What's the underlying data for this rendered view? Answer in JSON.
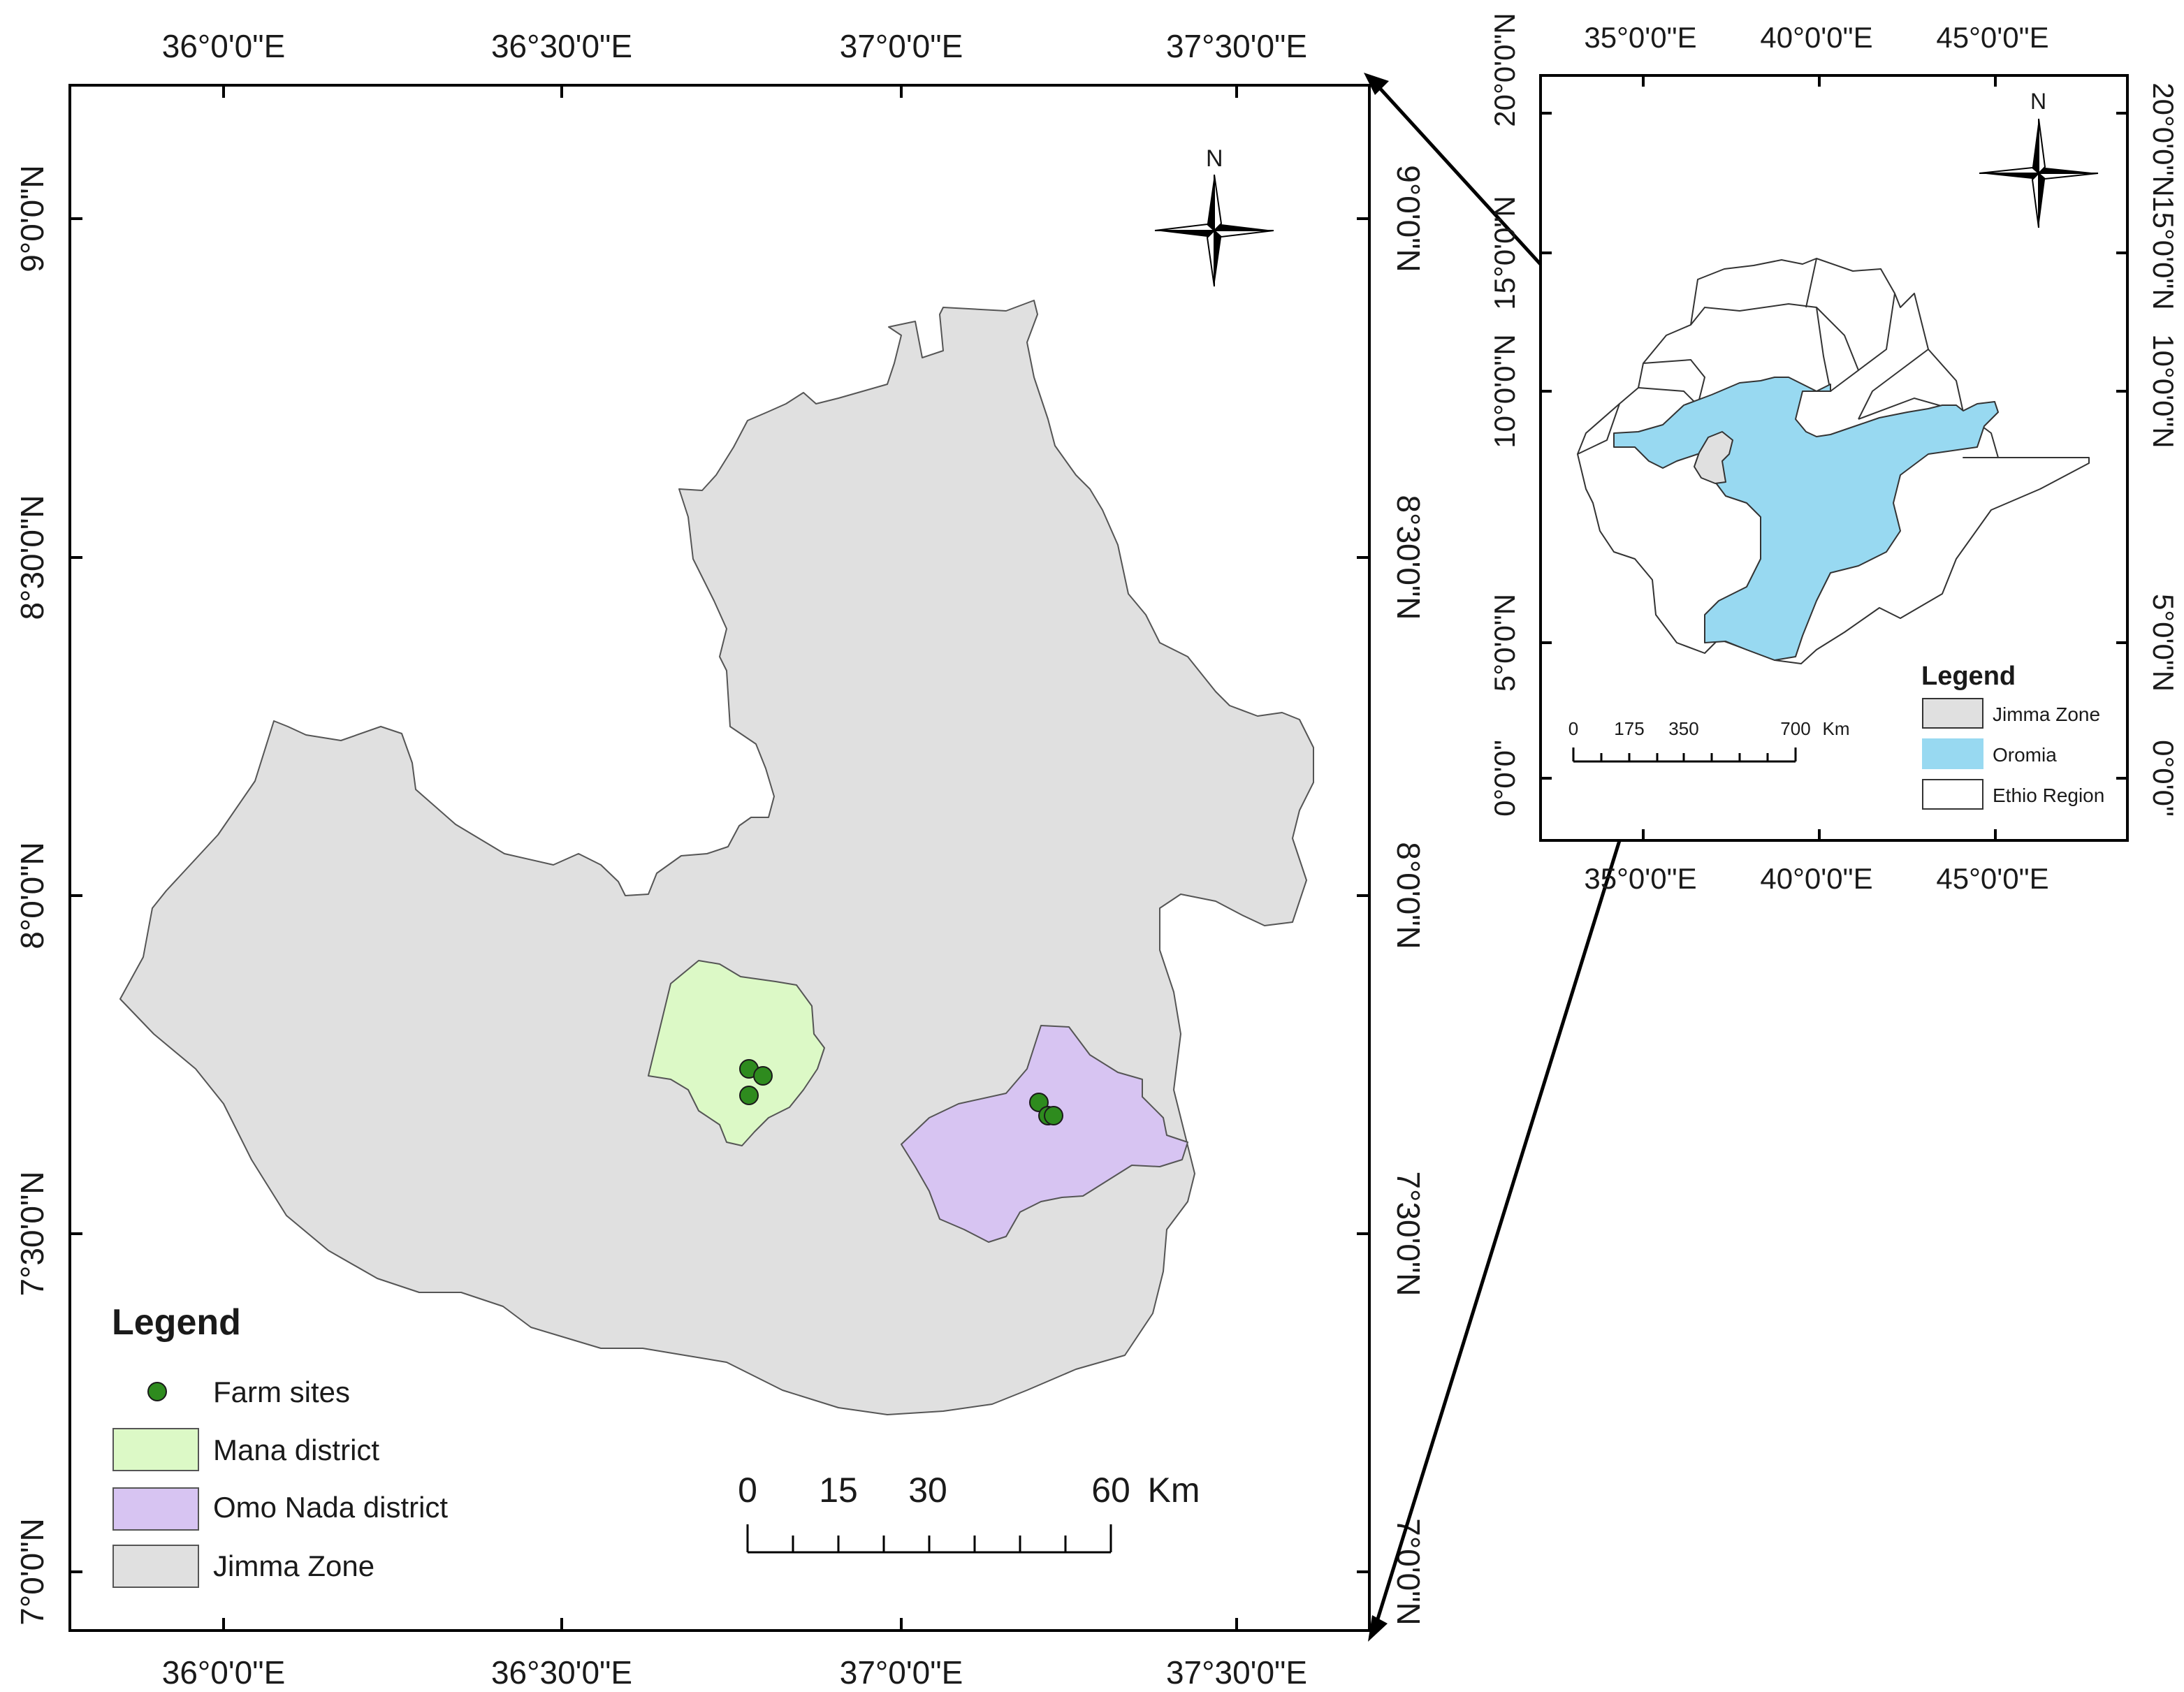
{
  "main_map": {
    "top_lon_labels": [
      "36°0'0\"E",
      "36°30'0\"E",
      "37°0'0\"E",
      "37°30'0\"E"
    ],
    "bottom_lon_labels": [
      "36°0'0\"E",
      "36°30'0\"E",
      "37°0'0\"E",
      "37°30'0\"E"
    ],
    "left_lat_labels": [
      "9°0'0\"N",
      "8°30'0\"N",
      "8°0'0\"N",
      "7°30'0\"N",
      "7°0'0\"N"
    ],
    "right_lat_labels": [
      "9°0'0\"N",
      "8°30'0\"N",
      "8°0'0\"N",
      "7°30'0\"N",
      "7°0'0\"N"
    ],
    "north_label": "N",
    "legend": {
      "title": "Legend",
      "items": [
        {
          "label": "Farm sites",
          "color": "#2e8b1e"
        },
        {
          "label": "Mana district",
          "color": "#dcf9c6"
        },
        {
          "label": "Omo Nada district",
          "color": "#d7c4f2"
        },
        {
          "label": "Jimma Zone",
          "color": "#e0e0e0"
        }
      ]
    },
    "scale_labels": [
      "0",
      "15",
      "30",
      "60",
      "Km"
    ]
  },
  "inset_map": {
    "top_lon_labels": [
      "35°0'0\"E",
      "40°0'0\"E",
      "45°0'0\"E"
    ],
    "bottom_lon_labels": [
      "35°0'0\"E",
      "40°0'0\"E",
      "45°0'0\"E"
    ],
    "left_lat_labels": [
      "20°0'0\"N",
      "15°0'0\"N",
      "10°0'0\"N",
      "5°0'0\"N",
      "0°0'0\""
    ],
    "right_lat_labels": [
      "20°0'0\"N",
      "15°0'0\"N",
      "10°0'0\"N",
      "5°0'0\"N",
      "0°0'0\""
    ],
    "north_label": "N",
    "legend": {
      "title": "Legend",
      "items": [
        {
          "label": "Jimma Zone",
          "color": "#e0e0e0"
        },
        {
          "label": "Oromia",
          "color": "#98d9f1"
        },
        {
          "label": "Ethio Region",
          "color": "#ffffff"
        }
      ]
    },
    "scale_labels": [
      "0",
      "175",
      "350",
      "700",
      "Km"
    ]
  },
  "colors": {
    "jimma_zone": "#e0e0e0",
    "mana": "#dcf9c6",
    "omo_nada": "#d7c4f2",
    "oromia": "#98d9f1",
    "farm_site": "#2e8b1e"
  }
}
